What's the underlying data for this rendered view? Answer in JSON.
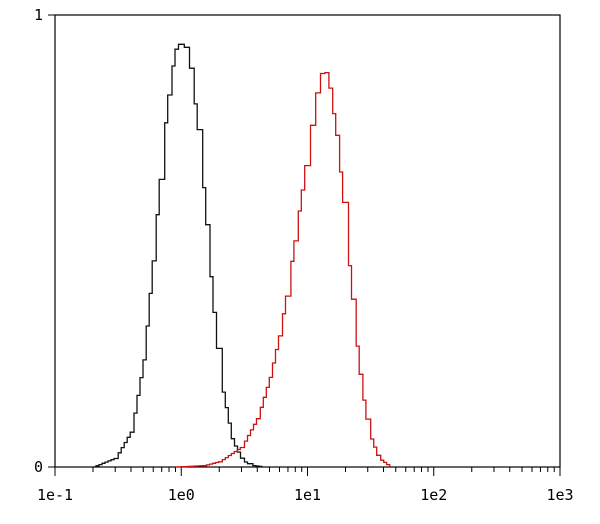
{
  "chart_data": {
    "type": "line",
    "title": "",
    "xlabel": "",
    "ylabel": "",
    "x_scale": "log",
    "xlim": [
      0.1,
      1000
    ],
    "ylim": [
      0,
      1
    ],
    "x_ticks": [
      {
        "value": 0.1,
        "label": "1e-1"
      },
      {
        "value": 1,
        "label": "1e0"
      },
      {
        "value": 10,
        "label": "1e1"
      },
      {
        "value": 100,
        "label": "1e2"
      },
      {
        "value": 1000,
        "label": "1e3"
      }
    ],
    "y_ticks": [
      {
        "value": 0,
        "label": "0"
      },
      {
        "value": 1,
        "label": "1"
      }
    ],
    "grid": false,
    "legend": "none",
    "series": [
      {
        "color": "#111111",
        "x": [
          0.2,
          0.3,
          0.4,
          0.5,
          0.6,
          0.7,
          0.8,
          0.9,
          1.0,
          1.1,
          1.2,
          1.4,
          1.6,
          1.8,
          2.0,
          2.5,
          3.0,
          3.5,
          4.5
        ],
        "y": [
          0.0,
          0.02,
          0.08,
          0.24,
          0.48,
          0.7,
          0.85,
          0.93,
          0.94,
          0.92,
          0.86,
          0.7,
          0.5,
          0.33,
          0.2,
          0.06,
          0.015,
          0.004,
          0.0
        ]
      },
      {
        "color": "#cc1111",
        "x": [
          0.9,
          1.5,
          2.0,
          3.0,
          4.0,
          5.0,
          6.0,
          7.0,
          8.0,
          9.0,
          10.0,
          11.0,
          12.0,
          13.0,
          14.0,
          15.0,
          17.0,
          20.0,
          23.0,
          26.0,
          30.0,
          36.0,
          45.0
        ],
        "y": [
          0.0,
          0.003,
          0.012,
          0.045,
          0.11,
          0.2,
          0.3,
          0.41,
          0.52,
          0.62,
          0.71,
          0.79,
          0.85,
          0.88,
          0.87,
          0.83,
          0.72,
          0.52,
          0.33,
          0.19,
          0.08,
          0.02,
          0.0
        ]
      }
    ]
  }
}
